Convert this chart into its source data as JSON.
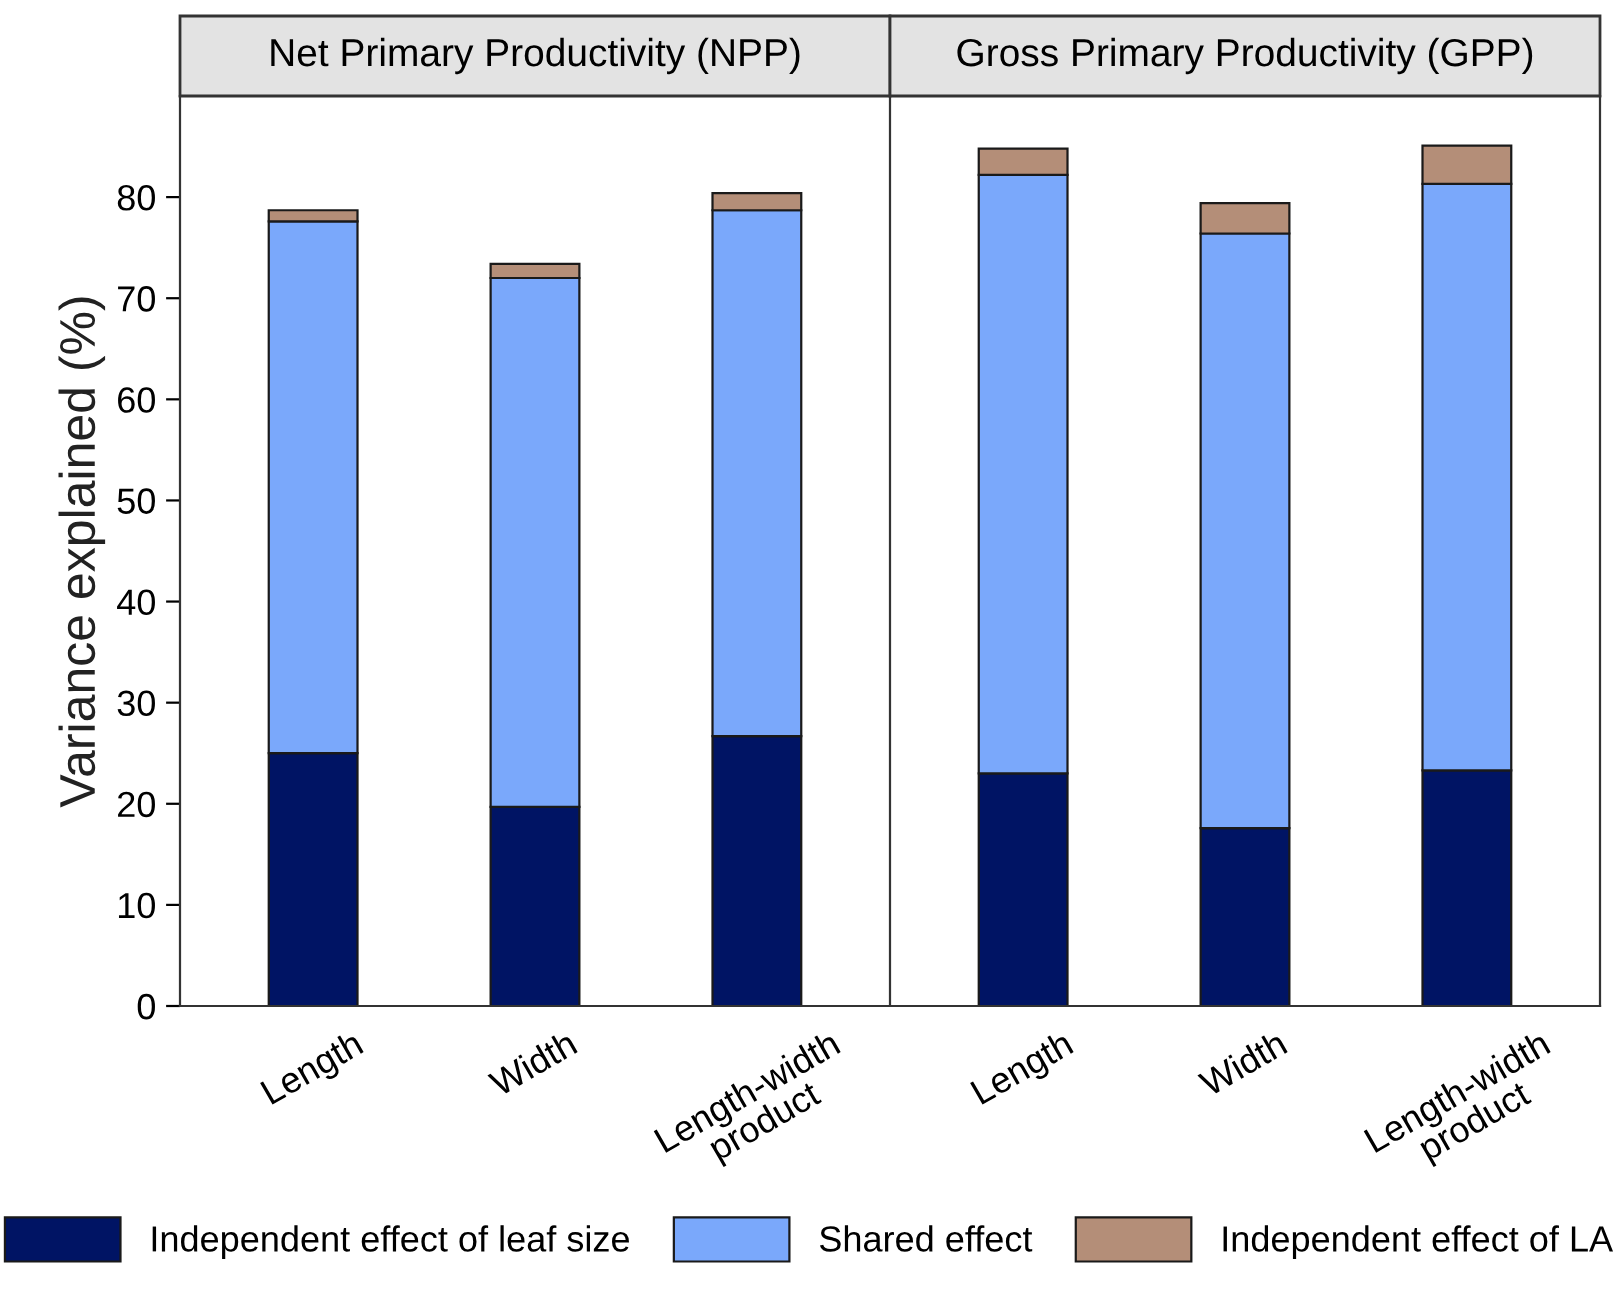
{
  "chart_data": [
    {
      "type": "bar",
      "title": "Net Primary Productivity (NPP)",
      "ylabel": "Variance explained (%)",
      "categories": [
        "Length",
        "Width",
        "Length-width\nproduct"
      ],
      "stacked": true,
      "ylim": [
        0,
        90
      ],
      "yticks": [
        0,
        10,
        20,
        30,
        40,
        50,
        60,
        70,
        80
      ],
      "grid": false,
      "legend": "bottom",
      "series": [
        {
          "name": "Independent effect of leaf size",
          "color": "#001464",
          "values": [
            25.0,
            19.7,
            26.7
          ]
        },
        {
          "name": "Shared effect",
          "color": "#7aa8fb",
          "values": [
            52.6,
            52.3,
            52.0
          ]
        },
        {
          "name": "Independent effect of LA",
          "color": "#b48e78",
          "values": [
            1.1,
            1.4,
            1.7
          ]
        }
      ]
    },
    {
      "type": "bar",
      "title": "Gross Primary Productivity (GPP)",
      "categories": [
        "Length",
        "Width",
        "Length-width\nproduct"
      ],
      "stacked": true,
      "ylim": [
        0,
        90
      ],
      "yticks": [
        0,
        10,
        20,
        30,
        40,
        50,
        60,
        70,
        80
      ],
      "grid": false,
      "tick_labels": "x",
      "series": [
        {
          "color": "#001464",
          "values": [
            23.0,
            17.6,
            23.3
          ]
        },
        {
          "color": "#7aa8fb",
          "values": [
            59.2,
            58.8,
            58.0
          ]
        },
        {
          "color": "#b48e78",
          "values": [
            2.6,
            3.0,
            3.8
          ]
        }
      ]
    }
  ]
}
